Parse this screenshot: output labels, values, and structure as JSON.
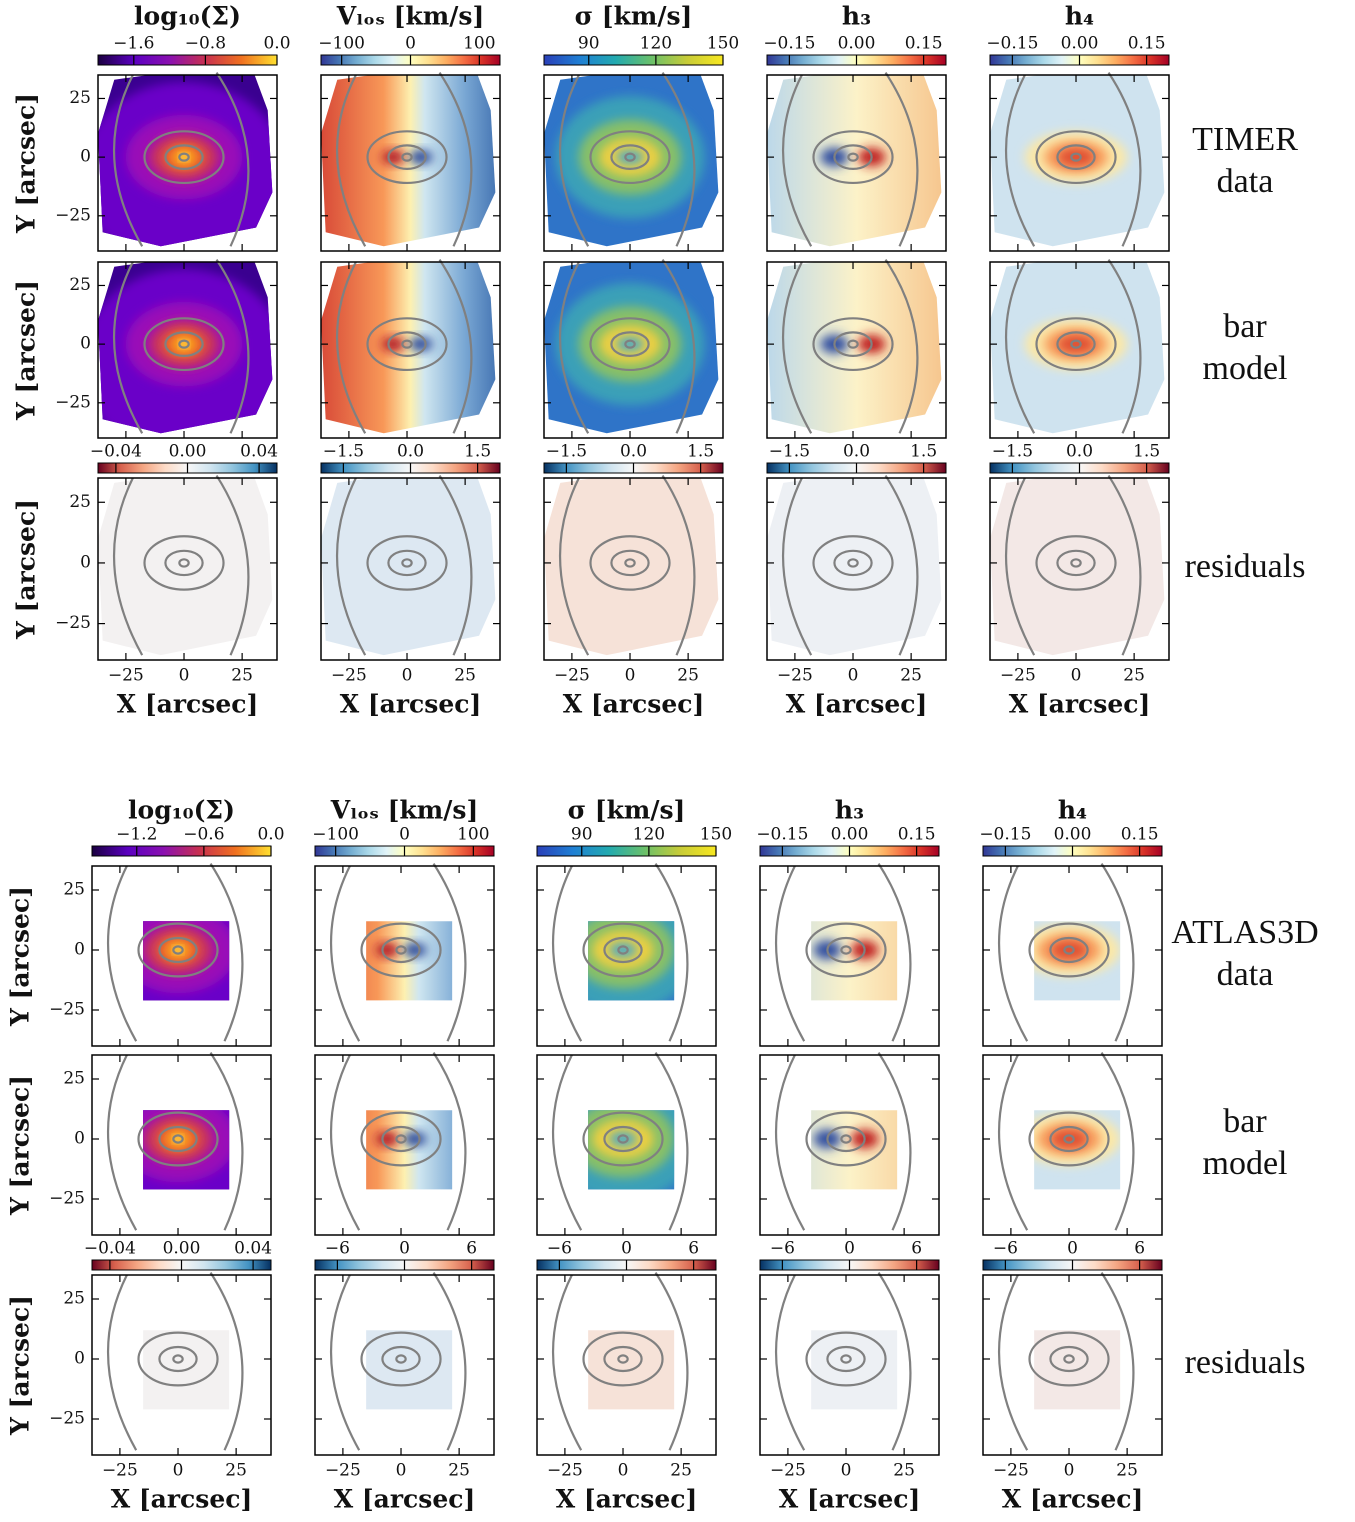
{
  "axes": {
    "xlabel": "X [arcsec]",
    "ylabel": "Y [arcsec]",
    "xlim": [
      -37,
      40
    ],
    "ylim": [
      -40,
      35
    ],
    "xticks": [
      {
        "value": -25,
        "label": "−25"
      },
      0,
      25
    ],
    "yticks": [
      25,
      0,
      {
        "value": -25,
        "label": "−25"
      }
    ]
  },
  "blocks": [
    {
      "row_labels": [
        [
          "TIMER",
          "data"
        ],
        [
          "bar",
          "model"
        ],
        [
          "residuals"
        ]
      ],
      "columns": [
        {
          "title": "log₁₀(Σ)",
          "cmap": "fire",
          "cbar_lim": [
            -2.0,
            0.0
          ],
          "cbar_ticks": [
            {
              "value": -1.6,
              "label": "−1.6"
            },
            {
              "value": -0.8,
              "label": "−0.8"
            },
            {
              "value": 0.0,
              "label": "0.0"
            }
          ],
          "residual_cmap": "RdBu",
          "residual_lim": [
            -0.05,
            0.05
          ],
          "residual_ticks": [
            {
              "value": -0.04,
              "label": "−0.04"
            },
            {
              "value": 0.0,
              "label": "0.00"
            },
            0.04
          ]
        },
        {
          "title": "Vₗₒₛ [km/s]",
          "cmap": "RdYlBu_r",
          "cbar_lim": [
            -130,
            130
          ],
          "cbar_ticks": [
            {
              "value": -100,
              "label": "−100"
            },
            0,
            100
          ],
          "residual_cmap": "RdBu_r",
          "residual_lim": [
            -2,
            2
          ],
          "residual_ticks": [
            {
              "value": -1.5,
              "label": "−1.5"
            },
            {
              "value": 0.0,
              "label": "0.0"
            },
            1.5
          ]
        },
        {
          "title": "σ [km/s]",
          "cmap": "parula",
          "cbar_lim": [
            70,
            150
          ],
          "cbar_ticks": [
            90,
            120,
            150
          ],
          "residual_cmap": "RdBu_r",
          "residual_lim": [
            -2,
            2
          ],
          "residual_ticks": [
            {
              "value": -1.5,
              "label": "−1.5"
            },
            {
              "value": 0.0,
              "label": "0.0"
            },
            1.5
          ]
        },
        {
          "title": "h₃",
          "cmap": "RdYlBu_r",
          "cbar_lim": [
            -0.2,
            0.2
          ],
          "cbar_ticks": [
            {
              "value": -0.15,
              "label": "−0.15"
            },
            {
              "value": 0.0,
              "label": "0.00"
            },
            0.15
          ],
          "residual_cmap": "RdBu_r",
          "residual_lim": [
            -2,
            2
          ],
          "residual_ticks": [
            {
              "value": -1.5,
              "label": "−1.5"
            },
            {
              "value": 0.0,
              "label": "0.0"
            },
            1.5
          ]
        },
        {
          "title": "h₄",
          "cmap": "RdYlBu_r",
          "cbar_lim": [
            -0.2,
            0.2
          ],
          "cbar_ticks": [
            {
              "value": -0.15,
              "label": "−0.15"
            },
            {
              "value": 0.0,
              "label": "0.00"
            },
            0.15
          ],
          "residual_cmap": "RdBu_r",
          "residual_lim": [
            -2,
            2
          ],
          "residual_ticks": [
            {
              "value": -1.5,
              "label": "−1.5"
            },
            {
              "value": 0.0,
              "label": "0.0"
            },
            1.5
          ]
        }
      ]
    },
    {
      "row_labels": [
        [
          "ATLAS3D",
          "data"
        ],
        [
          "bar",
          "model"
        ],
        [
          "residuals"
        ]
      ],
      "columns": [
        {
          "title": "log₁₀(Σ)",
          "cmap": "fire",
          "cbar_lim": [
            -1.6,
            0.0
          ],
          "cbar_ticks": [
            {
              "value": -1.2,
              "label": "−1.2"
            },
            {
              "value": -0.6,
              "label": "−0.6"
            },
            {
              "value": 0.0,
              "label": "0.0"
            }
          ],
          "residual_cmap": "RdBu",
          "residual_lim": [
            -0.05,
            0.05
          ],
          "residual_ticks": [
            {
              "value": -0.04,
              "label": "−0.04"
            },
            {
              "value": 0.0,
              "label": "0.00"
            },
            0.04
          ]
        },
        {
          "title": "Vₗₒₛ [km/s]",
          "cmap": "RdYlBu_r",
          "cbar_lim": [
            -130,
            130
          ],
          "cbar_ticks": [
            {
              "value": -100,
              "label": "−100"
            },
            0,
            100
          ],
          "residual_cmap": "RdBu_r",
          "residual_lim": [
            -8,
            8
          ],
          "residual_ticks": [
            {
              "value": -6,
              "label": "−6"
            },
            0,
            6
          ]
        },
        {
          "title": "σ [km/s]",
          "cmap": "parula",
          "cbar_lim": [
            70,
            150
          ],
          "cbar_ticks": [
            90,
            120,
            150
          ],
          "residual_cmap": "RdBu_r",
          "residual_lim": [
            -8,
            8
          ],
          "residual_ticks": [
            {
              "value": -6,
              "label": "−6"
            },
            0,
            6
          ]
        },
        {
          "title": "h₃",
          "cmap": "RdYlBu_r",
          "cbar_lim": [
            -0.2,
            0.2
          ],
          "cbar_ticks": [
            {
              "value": -0.15,
              "label": "−0.15"
            },
            {
              "value": 0.0,
              "label": "0.00"
            },
            0.15
          ],
          "residual_cmap": "RdBu_r",
          "residual_lim": [
            -8,
            8
          ],
          "residual_ticks": [
            {
              "value": -6,
              "label": "−6"
            },
            0,
            6
          ]
        },
        {
          "title": "h₄",
          "cmap": "RdYlBu_r",
          "cbar_lim": [
            -0.2,
            0.2
          ],
          "cbar_ticks": [
            {
              "value": -0.15,
              "label": "−0.15"
            },
            {
              "value": 0.0,
              "label": "0.00"
            },
            0.15
          ],
          "residual_cmap": "RdBu_r",
          "residual_lim": [
            -8,
            8
          ],
          "residual_ticks": [
            {
              "value": -6,
              "label": "−6"
            },
            0,
            6
          ]
        }
      ]
    }
  ]
}
